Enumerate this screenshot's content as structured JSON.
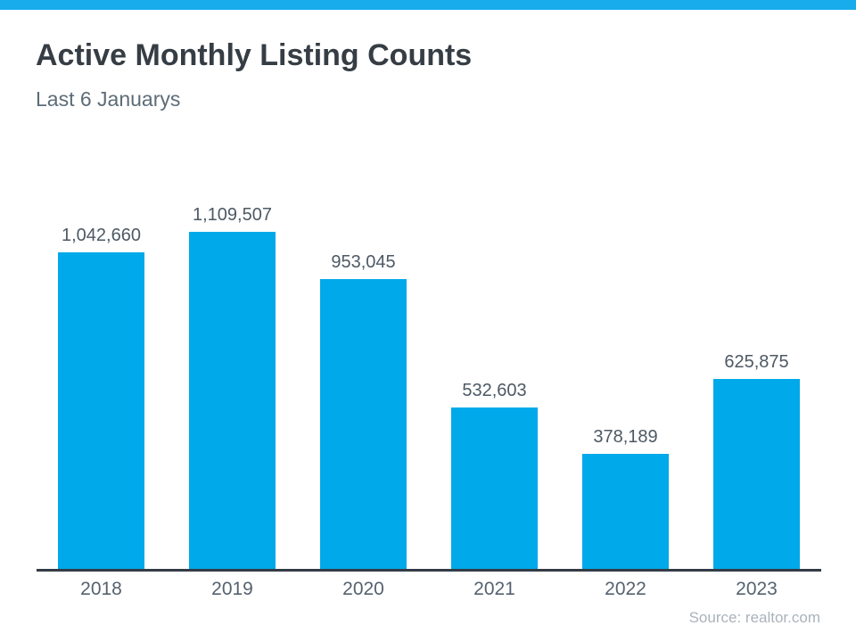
{
  "page": {
    "accent_color": "#18ACEC",
    "background_color": "#ffffff"
  },
  "header": {
    "title": "Active Monthly Listing Counts",
    "subtitle": "Last 6 Januarys"
  },
  "chart_data": {
    "type": "bar",
    "title": "Active Monthly Listing Counts",
    "subtitle": "Last 6 Januarys",
    "categories": [
      "2018",
      "2019",
      "2020",
      "2021",
      "2022",
      "2023"
    ],
    "values": [
      1042660,
      1109507,
      953045,
      532603,
      378189,
      625875
    ],
    "value_labels": [
      "1,042,660",
      "1,109,507",
      "953,045",
      "532,603",
      "378,189",
      "625,875"
    ],
    "bar_color": "#00A9E9",
    "axis_line_color": "#333C46",
    "value_label_color": "#4D5964",
    "tick_label_color": "#556270",
    "xlabel": "",
    "ylabel": "",
    "ylim": [
      0,
      1160000
    ],
    "grid": false,
    "legend": null,
    "source": "Source: realtor.com"
  },
  "footer": {
    "source": "Source: realtor.com"
  }
}
